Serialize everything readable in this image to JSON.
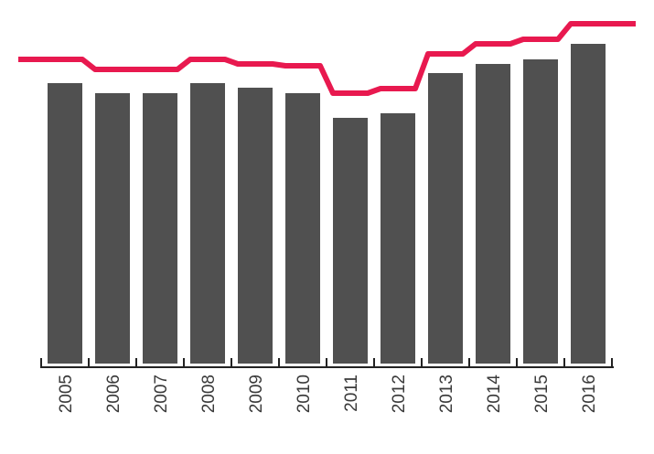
{
  "chart_data": {
    "type": "bar",
    "categories": [
      "2005",
      "2006",
      "2007",
      "2008",
      "2009",
      "2010",
      "2011",
      "2012",
      "2013",
      "2014",
      "2015",
      "2016"
    ],
    "series": [
      {
        "type": "bar",
        "values": [
          307,
          296,
          296,
          307,
          302,
          296,
          269,
          274,
          318,
          328,
          333,
          350
        ]
      },
      {
        "type": "line",
        "values": [
          333,
          322,
          322,
          333,
          328,
          326,
          296,
          301,
          339,
          350,
          355,
          372
        ]
      }
    ],
    "ylim": [
      0,
      390
    ],
    "grid": false,
    "legend": "none",
    "colors": {
      "bar": "#505050",
      "line": "#e8194f",
      "axis": "#222222",
      "tick_label": "#3a3a3a"
    }
  }
}
